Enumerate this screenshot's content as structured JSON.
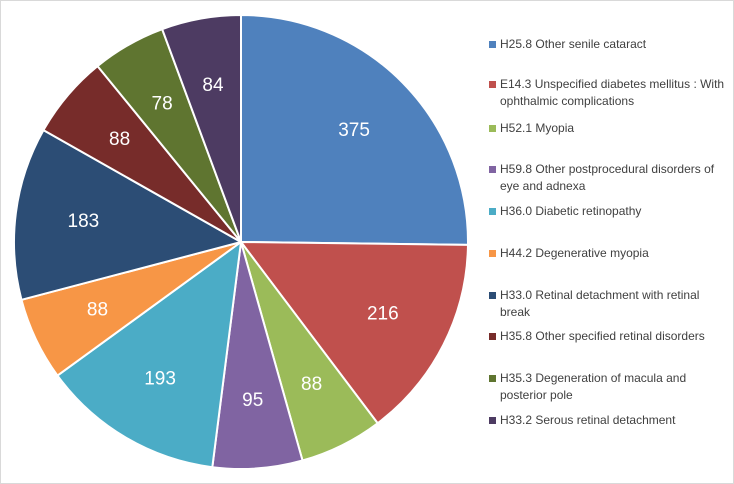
{
  "chart_data": {
    "type": "pie",
    "slices": [
      {
        "label": "H25.8 Other senile cataract",
        "value": 375,
        "color": "#4F81BD"
      },
      {
        "label": "E14.3 Unspecified diabetes mellitus : With ophthalmic complications",
        "value": 216,
        "color": "#C0504D"
      },
      {
        "label": "H52.1 Myopia",
        "value": 88,
        "color": "#9BBB59"
      },
      {
        "label": "H59.8 Other postprocedural disorders of eye and adnexa",
        "value": 95,
        "color": "#8064A2"
      },
      {
        "label": "H36.0 Diabetic retinopathy",
        "value": 193,
        "color": "#4BACC6"
      },
      {
        "label": "H44.2 Degenerative myopia",
        "value": 88,
        "color": "#F79646"
      },
      {
        "label": "H33.0 Retinal detachment with retinal break",
        "value": 183,
        "color": "#2C4D75"
      },
      {
        "label": "H35.8 Other specified retinal disorders",
        "value": 88,
        "color": "#772C2A"
      },
      {
        "label": "H35.3 Degeneration of macula and posterior pole",
        "value": 78,
        "color": "#5F7530"
      },
      {
        "label": "H33.2 Serous retinal detachment",
        "value": 84,
        "color": "#4D3B62"
      }
    ],
    "start_angle": "12 o'clock",
    "direction": "clockwise",
    "legend_position": "right",
    "data_labels": "inside",
    "grid": false
  }
}
